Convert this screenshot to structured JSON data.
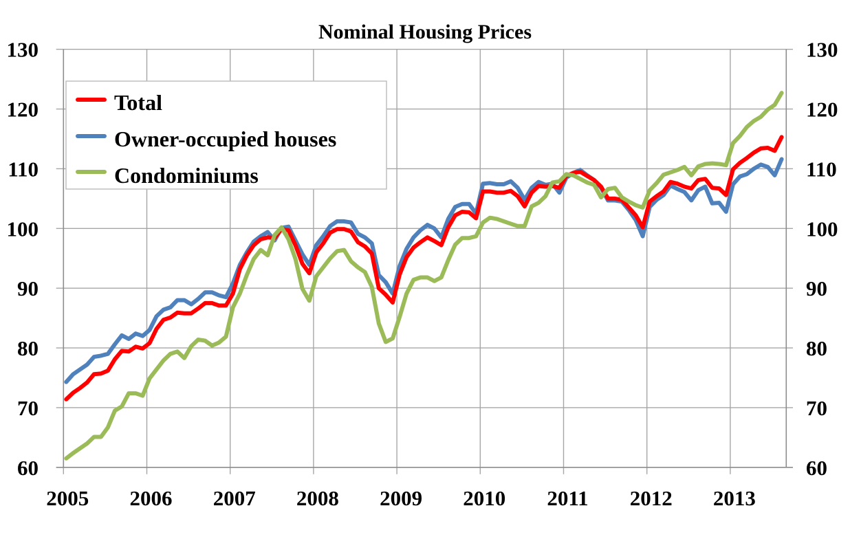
{
  "chart_data": {
    "type": "line",
    "title": "Nominal Housing Prices",
    "xlabel": "",
    "ylabel": "",
    "ylabel_right": "",
    "ylim": [
      60,
      130
    ],
    "yticks": [
      60,
      70,
      80,
      90,
      100,
      110,
      120,
      130
    ],
    "ytick_labels": [
      "60",
      "70",
      "80",
      "90",
      "100",
      "110",
      "120",
      "130"
    ],
    "ytick_labels_right": [
      "60",
      "70",
      "80",
      "90",
      "100",
      "110",
      "120",
      "130"
    ],
    "x_start": "2005-01",
    "x_end": "2013-08",
    "frequency": "monthly",
    "xtick_labels": [
      "2005",
      "2006",
      "2007",
      "2008",
      "2009",
      "2010",
      "2011",
      "2012",
      "2013"
    ],
    "grid": true,
    "legend_position": "top-left",
    "series": [
      {
        "name": "Total",
        "color": "#ff0000",
        "values": [
          71.4,
          72.5,
          73.3,
          74.2,
          75.6,
          75.7,
          76.2,
          78.1,
          79.5,
          79.4,
          80.2,
          79.9,
          80.8,
          83.2,
          84.7,
          85.1,
          85.9,
          85.8,
          85.8,
          86.6,
          87.5,
          87.5,
          87.1,
          87.1,
          89.1,
          93.2,
          95.5,
          97.2,
          98.2,
          98.5,
          98.4,
          99.9,
          99.7,
          97.2,
          94.1,
          92.5,
          96.0,
          97.5,
          99.3,
          99.9,
          99.9,
          99.5,
          97.7,
          97.0,
          95.8,
          90.0,
          88.9,
          87.6,
          92.3,
          95.2,
          96.8,
          97.7,
          98.5,
          97.9,
          97.2,
          100.2,
          102.2,
          102.8,
          102.7,
          101.7,
          106.2,
          106.2,
          106.0,
          106.0,
          106.3,
          105.4,
          103.7,
          106.0,
          107.1,
          107.0,
          107.1,
          106.8,
          108.8,
          109.3,
          109.5,
          108.8,
          108.1,
          107.0,
          105.0,
          105.0,
          104.8,
          103.5,
          102.2,
          100.2,
          104.5,
          105.4,
          106.2,
          107.8,
          107.5,
          107.0,
          106.7,
          108.1,
          108.3,
          106.8,
          106.7,
          105.6,
          109.9,
          111.0,
          111.8,
          112.7,
          113.4,
          113.5,
          113.0,
          115.3
        ]
      },
      {
        "name": "Owner-occupied houses",
        "color": "#4f81bd",
        "values": [
          74.3,
          75.6,
          76.4,
          77.2,
          78.5,
          78.7,
          79.0,
          80.6,
          82.1,
          81.5,
          82.4,
          82.0,
          83.0,
          85.3,
          86.4,
          86.8,
          88.0,
          88.0,
          87.3,
          88.2,
          89.3,
          89.3,
          88.8,
          88.5,
          90.8,
          93.9,
          96.0,
          97.8,
          98.7,
          99.4,
          98.0,
          100.1,
          100.3,
          98.0,
          95.7,
          93.9,
          97.2,
          98.7,
          100.4,
          101.2,
          101.2,
          101.0,
          99.1,
          98.5,
          97.5,
          92.2,
          91.0,
          89.1,
          93.7,
          96.6,
          98.5,
          99.7,
          100.6,
          100.0,
          98.5,
          101.6,
          103.6,
          104.1,
          104.1,
          102.5,
          107.5,
          107.6,
          107.4,
          107.4,
          107.9,
          106.8,
          104.8,
          106.8,
          107.8,
          107.3,
          107.5,
          106.0,
          108.5,
          109.3,
          109.8,
          108.9,
          108.1,
          106.8,
          104.7,
          104.7,
          104.5,
          103.1,
          101.4,
          98.7,
          103.6,
          104.8,
          105.6,
          107.2,
          106.6,
          106.1,
          104.7,
          106.4,
          107.0,
          104.2,
          104.3,
          102.8,
          107.4,
          108.7,
          109.1,
          110.0,
          110.7,
          110.3,
          108.9,
          111.6
        ]
      },
      {
        "name": "Condominiums",
        "color": "#9bbb59",
        "values": [
          61.5,
          62.4,
          63.2,
          64.0,
          65.1,
          65.1,
          66.7,
          69.5,
          70.2,
          72.4,
          72.4,
          72.0,
          74.9,
          76.4,
          77.9,
          79.0,
          79.4,
          78.3,
          80.3,
          81.4,
          81.2,
          80.4,
          80.9,
          81.9,
          86.8,
          89.1,
          92.2,
          94.9,
          96.4,
          95.5,
          98.9,
          100.2,
          98.2,
          94.9,
          89.9,
          87.9,
          92.0,
          93.5,
          95.0,
          96.2,
          96.4,
          94.5,
          93.5,
          92.7,
          90.2,
          84.1,
          81.0,
          81.6,
          85.2,
          89.1,
          91.4,
          91.8,
          91.8,
          91.2,
          91.8,
          94.7,
          97.3,
          98.4,
          98.4,
          98.7,
          101.0,
          101.8,
          101.6,
          101.2,
          100.8,
          100.4,
          100.4,
          103.7,
          104.3,
          105.4,
          107.7,
          107.9,
          109.1,
          108.9,
          108.3,
          107.7,
          107.3,
          105.2,
          106.6,
          106.8,
          105.2,
          104.5,
          103.9,
          103.5,
          106.4,
          107.6,
          109.0,
          109.4,
          109.8,
          110.3,
          108.9,
          110.4,
          110.8,
          110.9,
          110.8,
          110.6,
          114.3,
          115.5,
          117.0,
          118.0,
          118.7,
          119.9,
          120.7,
          122.7
        ]
      }
    ]
  }
}
